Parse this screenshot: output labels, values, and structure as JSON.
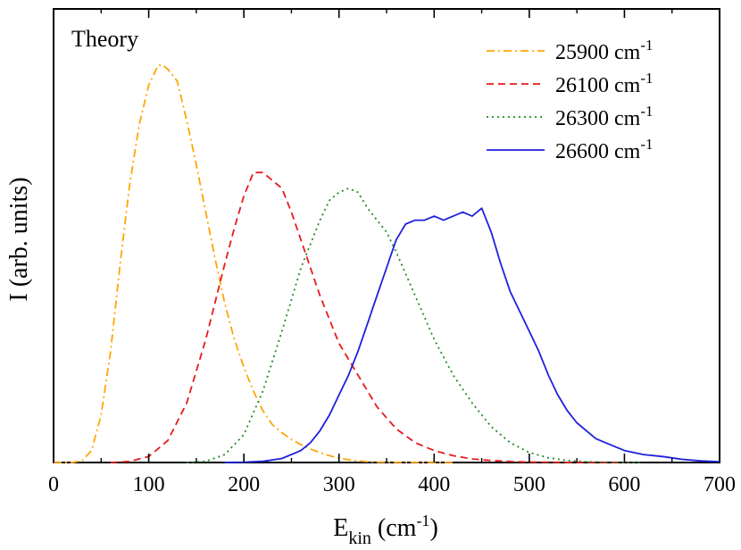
{
  "chart_data": {
    "type": "line",
    "title": "",
    "annotation": "Theory",
    "xlabel": {
      "main": "E",
      "sub": "kin",
      "unit_open": " (cm",
      "unit_sup": "-1",
      "unit_close": ")"
    },
    "ylabel": "I (arb. units)",
    "xlim": [
      0,
      700
    ],
    "ylim": [
      0,
      1
    ],
    "x_ticks": [
      "0",
      "100",
      "200",
      "300",
      "400",
      "500",
      "600",
      "700"
    ],
    "y_ticks_shown": false,
    "grid": false,
    "legend_position": "top-right",
    "series": [
      {
        "name": "25900 cm",
        "name_sup": "-1",
        "color": "#ffa500",
        "style": "dash-dot",
        "x": [
          0,
          20,
          30,
          40,
          50,
          60,
          70,
          80,
          90,
          100,
          110,
          115,
          120,
          130,
          140,
          150,
          160,
          170,
          180,
          190,
          200,
          210,
          220,
          230,
          240,
          250,
          260,
          270,
          280,
          290,
          300,
          310,
          320,
          330,
          340,
          360,
          380,
          400,
          420
        ],
        "values": [
          0,
          0.0,
          0.005,
          0.03,
          0.12,
          0.28,
          0.5,
          0.7,
          0.85,
          0.95,
          1.0,
          1.0,
          0.99,
          0.96,
          0.86,
          0.75,
          0.63,
          0.51,
          0.4,
          0.31,
          0.24,
          0.18,
          0.13,
          0.095,
          0.075,
          0.058,
          0.045,
          0.034,
          0.025,
          0.017,
          0.011,
          0.007,
          0.004,
          0.002,
          0.001,
          0.0005,
          0.0002,
          0.0001,
          0
        ]
      },
      {
        "name": "26100 cm",
        "name_sup": "-1",
        "color": "#e8191c",
        "style": "dashed",
        "x": [
          60,
          80,
          100,
          120,
          140,
          160,
          180,
          190,
          200,
          210,
          220,
          230,
          240,
          250,
          260,
          280,
          300,
          320,
          340,
          360,
          380,
          400,
          420,
          440,
          460,
          480,
          500,
          520,
          540,
          560,
          580,
          600
        ],
        "values": [
          0,
          0.003,
          0.015,
          0.055,
          0.15,
          0.31,
          0.5,
          0.59,
          0.67,
          0.73,
          0.73,
          0.71,
          0.69,
          0.63,
          0.56,
          0.42,
          0.3,
          0.22,
          0.14,
          0.085,
          0.05,
          0.03,
          0.017,
          0.009,
          0.005,
          0.0025,
          0.0012,
          0.0006,
          0.0003,
          0.0001,
          5e-05,
          0
        ]
      },
      {
        "name": "26300 cm",
        "name_sup": "-1",
        "color": "#1f8a1f",
        "style": "dotted",
        "x": [
          140,
          160,
          180,
          200,
          220,
          240,
          260,
          280,
          290,
          300,
          310,
          320,
          330,
          340,
          350,
          360,
          380,
          400,
          420,
          440,
          460,
          480,
          500,
          520,
          540,
          560,
          580,
          600,
          620
        ],
        "values": [
          0,
          0.003,
          0.02,
          0.07,
          0.18,
          0.33,
          0.49,
          0.61,
          0.66,
          0.68,
          0.69,
          0.68,
          0.64,
          0.61,
          0.58,
          0.53,
          0.42,
          0.31,
          0.22,
          0.15,
          0.09,
          0.05,
          0.025,
          0.012,
          0.005,
          0.002,
          0.0008,
          0.0003,
          0
        ]
      },
      {
        "name": "26600 cm",
        "name_sup": "-1",
        "color": "#1f1fdd",
        "style": "solid",
        "x": [
          180,
          200,
          220,
          240,
          260,
          270,
          280,
          290,
          300,
          310,
          320,
          330,
          340,
          350,
          360,
          370,
          380,
          390,
          400,
          410,
          420,
          430,
          440,
          450,
          460,
          470,
          480,
          490,
          500,
          510,
          520,
          530,
          540,
          550,
          560,
          570,
          580,
          600,
          620,
          640,
          660,
          680,
          700
        ],
        "values": [
          0,
          0.001,
          0.003,
          0.01,
          0.03,
          0.05,
          0.08,
          0.12,
          0.17,
          0.22,
          0.28,
          0.35,
          0.42,
          0.49,
          0.56,
          0.6,
          0.61,
          0.61,
          0.62,
          0.61,
          0.62,
          0.63,
          0.62,
          0.64,
          0.58,
          0.5,
          0.43,
          0.38,
          0.33,
          0.28,
          0.22,
          0.17,
          0.13,
          0.1,
          0.08,
          0.06,
          0.05,
          0.03,
          0.02,
          0.015,
          0.008,
          0.004,
          0.002
        ]
      }
    ]
  }
}
